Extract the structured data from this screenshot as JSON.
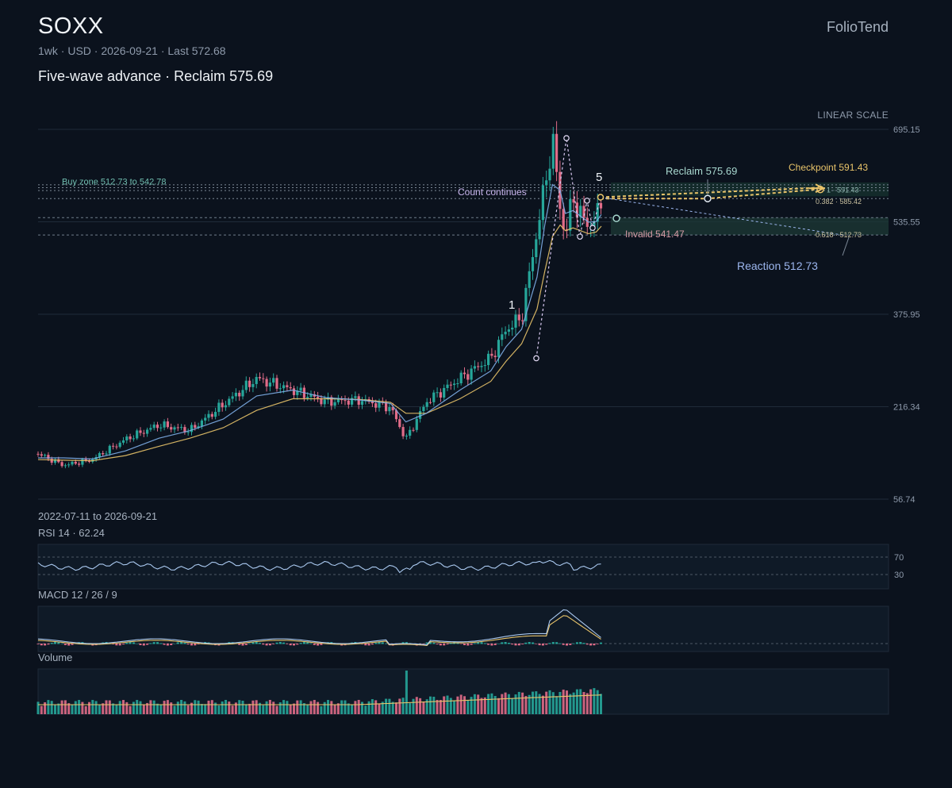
{
  "header": {
    "ticker": "SOXX",
    "meta": "1wk · USD · 2026-09-21 · Last 572.68",
    "headline": "Five-wave advance · Reclaim 575.69",
    "brand": "FolioTend",
    "scale": "LINEAR SCALE"
  },
  "chart_data": [
    {
      "type": "candlestick",
      "title": "SOXX",
      "interval": "1wk",
      "currency": "USD",
      "last": 572.68,
      "range_label": "2022-07-11 to 2026-09-21",
      "x_start": "2022-07-11",
      "x_end": "2026-09-21",
      "ylim": [
        56.74,
        695.15
      ],
      "y_ticks": [
        695.15,
        535.55,
        375.95,
        216.34,
        56.74
      ],
      "scale": "linear",
      "series": [
        {
          "name": "close",
          "dates": [
            "2022-07-11",
            "2022-09-19",
            "2022-12-05",
            "2023-03-06",
            "2023-06-05",
            "2023-08-28",
            "2023-11-27",
            "2024-02-26",
            "2024-06-03",
            "2024-09-02",
            "2024-12-02",
            "2025-02-24",
            "2025-04-07",
            "2025-06-02",
            "2025-09-01",
            "2025-11-24",
            "2026-01-05",
            "2026-02-16",
            "2026-03-30",
            "2026-04-20",
            "2026-05-11",
            "2026-06-01",
            "2026-06-15",
            "2026-07-06",
            "2026-07-27",
            "2026-08-17",
            "2026-09-07",
            "2026-09-21"
          ],
          "values": [
            135,
            115,
            125,
            160,
            185,
            175,
            220,
            265,
            245,
            225,
            228,
            215,
            160,
            225,
            265,
            300,
            350,
            370,
            520,
            595,
            680,
            560,
            510,
            580,
            545,
            530,
            540,
            572.68
          ]
        },
        {
          "name": "ma_fast",
          "values": [
            128,
            128,
            126,
            140,
            162,
            175,
            195,
            235,
            245,
            232,
            228,
            222,
            190,
            205,
            245,
            278,
            320,
            350,
            440,
            530,
            600,
            590,
            550,
            555,
            545,
            535,
            536,
            548
          ]
        },
        {
          "name": "ma_slow",
          "values": [
            125,
            124,
            123,
            132,
            148,
            162,
            180,
            210,
            230,
            230,
            229,
            224,
            205,
            205,
            230,
            260,
            295,
            325,
            385,
            450,
            510,
            530,
            520,
            525,
            520,
            515,
            518,
            528
          ]
        }
      ],
      "levels": [
        {
          "label": "Reclaim 575.69",
          "value": 575.69,
          "color": "#a8d8cf"
        },
        {
          "label": "Checkpoint 591.43",
          "value": 591.43,
          "color": "#e9c46a"
        },
        {
          "label": "Invalid 541.47",
          "value": 541.47,
          "color": "#d49aa4"
        },
        {
          "label": "Reaction 512.73",
          "value": 512.73,
          "color": "#9cb6ee"
        },
        {
          "label": "Count continues",
          "value": 596,
          "color": "#c9b6ee"
        }
      ],
      "zones": [
        {
          "label": "Buy zone 512.73 to 542.78",
          "from": 512.73,
          "to": 542.78,
          "color": "#6fbcae"
        }
      ],
      "fib": [
        {
          "label": "0.382 · 585.42",
          "value": 585.42
        },
        {
          "label": "0.618 · 512.73",
          "value": 512.73
        }
      ],
      "target_label": "1 · 591.43",
      "waves": [
        {
          "label": "1",
          "value": 380
        },
        {
          "label": "5",
          "value": 608
        }
      ]
    },
    {
      "type": "line",
      "title": "RSI 14 · 62.24",
      "series": [
        {
          "name": "RSI 14",
          "last": 62.24
        }
      ],
      "levels": [
        70,
        30
      ],
      "level_labels": [
        "70",
        "30"
      ]
    },
    {
      "type": "bar",
      "title": "MACD 12 / 26 / 9",
      "series": [
        {
          "name": "MACD"
        },
        {
          "name": "Signal"
        },
        {
          "name": "Histogram"
        }
      ]
    },
    {
      "type": "bar",
      "title": "Volume",
      "series": [
        {
          "name": "Volume"
        },
        {
          "name": "Volume MA"
        }
      ]
    }
  ],
  "colors": {
    "up": "#26a69a",
    "down": "#e06c88",
    "ma_fast": "#7fb0ea",
    "ma_slow": "#e9c46a",
    "grid": "#1f2b39",
    "panel": "#0f1a27",
    "zone": "#1d3a36",
    "accent": "#e9c46a"
  }
}
